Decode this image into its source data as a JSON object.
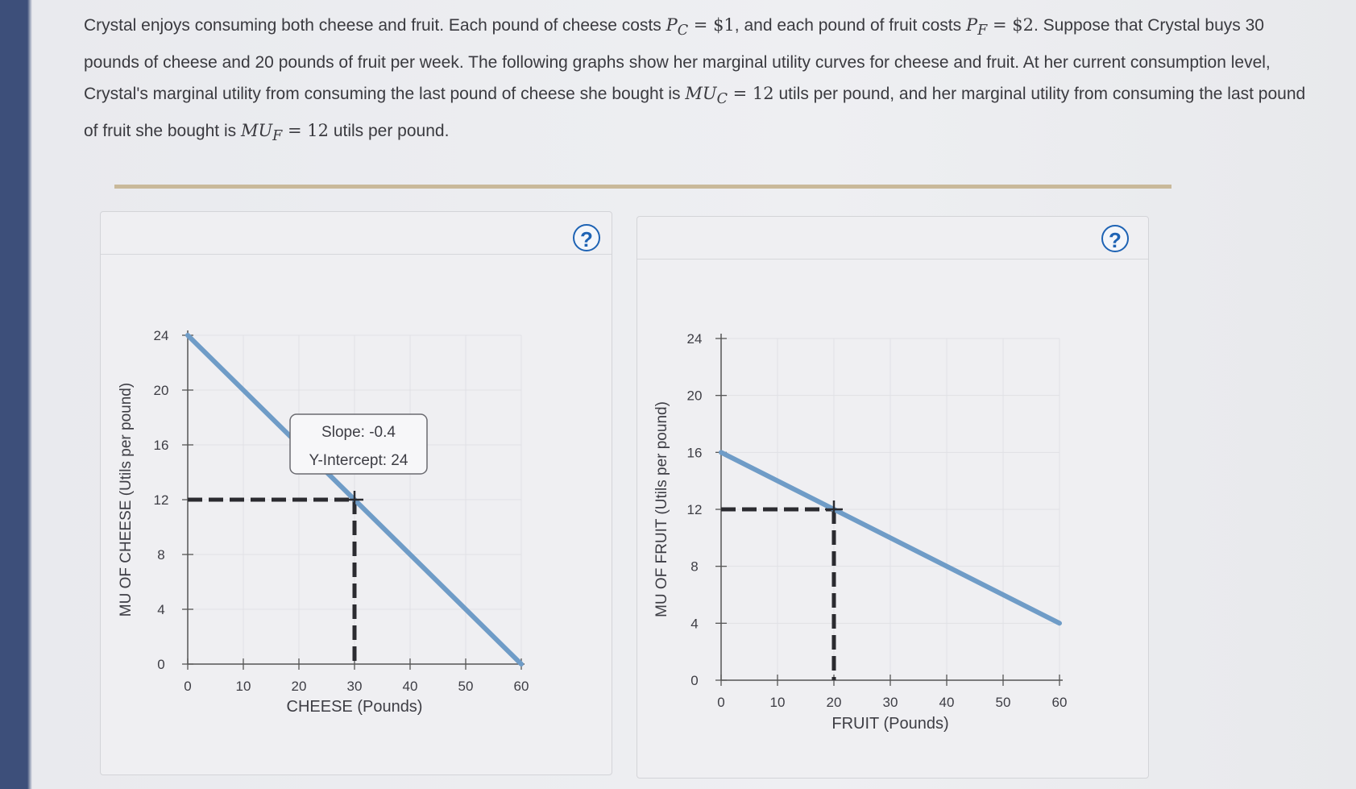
{
  "problem": {
    "p1": "Crystal enjoys consuming both cheese and fruit. Each pound of cheese costs ",
    "pc": "P",
    "pc_sub": "C",
    "pc_val": " = $1",
    "p2": ", and each pound of fruit costs ",
    "pf": "P",
    "pf_sub": "F",
    "pf_val": " = $2",
    "p3": ". Suppose that Crystal buys 30 pounds of cheese and 20 pounds of fruit per week. The following graphs show her marginal utility curves for cheese and fruit. At her current consumption level, Crystal's marginal utility from consuming the last pound of cheese she bought is ",
    "muc": "MU",
    "muc_sub": "C",
    "muc_val": " = 12",
    "p4": " utils per pound, and her marginal utility from consuming the last pound of fruit she bought is ",
    "muf": "MU",
    "muf_sub": "F",
    "muf_val": " = 12",
    "p5": " utils per pound."
  },
  "help_label": "?",
  "colors": {
    "curve": "#6f9cc7",
    "marker": "#2b2b30",
    "help": "#1e63b4"
  },
  "chart_data": [
    {
      "type": "line",
      "title": "",
      "xlabel": "CHEESE (Pounds)",
      "ylabel": "MU OF CHEESE (Utils per pound)",
      "xlim": [
        0,
        60
      ],
      "ylim": [
        0,
        24
      ],
      "x_ticks": [
        0,
        10,
        20,
        30,
        40,
        50,
        60
      ],
      "y_ticks": [
        0,
        4,
        8,
        12,
        16,
        20,
        24
      ],
      "series": [
        {
          "name": "MU of cheese",
          "x": [
            0,
            60
          ],
          "y": [
            24,
            0
          ]
        }
      ],
      "point": {
        "x": 30,
        "y": 12
      },
      "tooltip": {
        "slope": "Slope: -0.4",
        "intercept": "Y-Intercept: 24"
      }
    },
    {
      "type": "line",
      "title": "",
      "xlabel": "FRUIT (Pounds)",
      "ylabel": "MU OF FRUIT (Utils per pound)",
      "xlim": [
        0,
        60
      ],
      "ylim": [
        0,
        24
      ],
      "x_ticks": [
        0,
        10,
        20,
        30,
        40,
        50,
        60
      ],
      "y_ticks": [
        0,
        4,
        8,
        12,
        16,
        20,
        24
      ],
      "series": [
        {
          "name": "MU of fruit",
          "x": [
            0,
            60
          ],
          "y": [
            16,
            4
          ]
        }
      ],
      "point": {
        "x": 20,
        "y": 12
      }
    }
  ]
}
